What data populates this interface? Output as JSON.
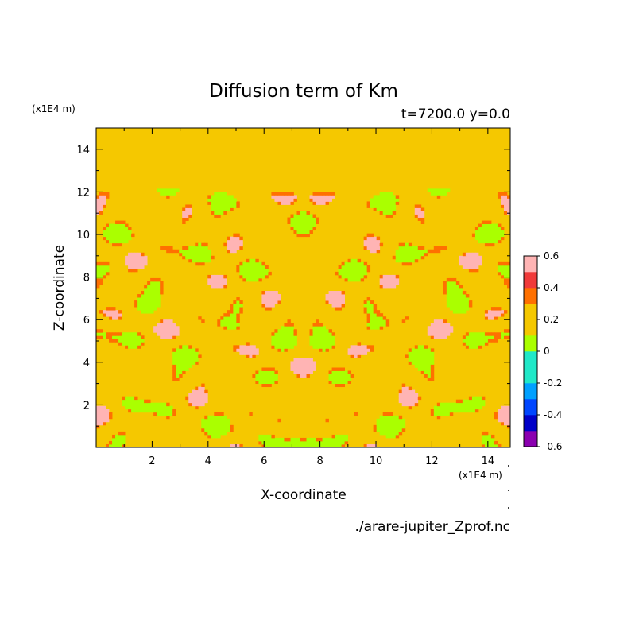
{
  "colors": {
    "background": "#ffffff",
    "levels": [
      "#8b00b0",
      "#0000c8",
      "#0046ff",
      "#00a0ff",
      "#20e8c8",
      "#aaff00",
      "#f5c800",
      "#ff7000",
      "#f03a3a",
      "#ffb4b4"
    ]
  },
  "chart_data": {
    "type": "heatmap",
    "title": "Diffusion term of Km",
    "subtitle": "t=7200.0 y=0.0",
    "xlabel": "X-coordinate",
    "ylabel": "Z-coordinate",
    "x_unit": "(x1E4 m)",
    "y_unit": "(x1E4 m)",
    "xlim": [
      0.0,
      14.8
    ],
    "ylim": [
      0.0,
      15.0
    ],
    "x_ticks": [
      "2",
      "4",
      "6",
      "8",
      "10",
      "12",
      "14"
    ],
    "y_ticks": [
      "2",
      "4",
      "6",
      "8",
      "10",
      "12",
      "14"
    ],
    "colorbar": {
      "levels": [
        -0.6,
        -0.5,
        -0.4,
        -0.3,
        -0.2,
        -0.1,
        0.0,
        0.1,
        0.2,
        0.3,
        0.4,
        0.5,
        0.6
      ],
      "tick_labels": [
        "0.6",
        "0.4",
        "0.2",
        "0",
        "-0.2",
        "-0.4",
        "-0.6"
      ]
    },
    "field_description_values": {
      "background_value": 0.02,
      "active_layer_z": [
        0.0,
        12.3
      ],
      "quiet_layer_z": [
        12.3,
        15.0
      ]
    },
    "footer": "./arare-jupiter_Zprof.nc"
  }
}
